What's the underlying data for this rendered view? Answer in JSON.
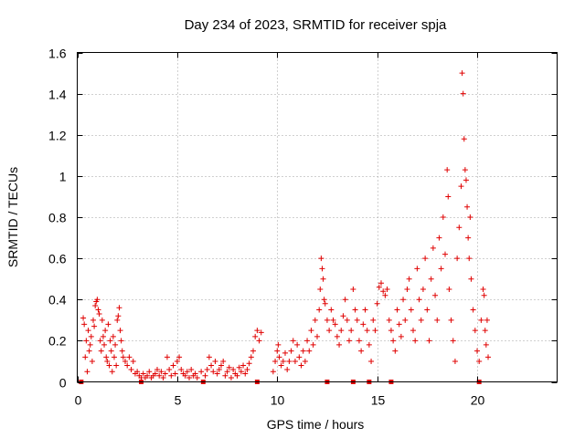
{
  "chart_data": {
    "type": "scatter",
    "title": "Day 234 of 2023, SRMTID for receiver spja",
    "xlabel": "GPS time / hours",
    "ylabel": "SRMTID / TECUs",
    "xlim": [
      0,
      24
    ],
    "ylim": [
      0,
      1.6
    ],
    "xticks": [
      "0",
      "5",
      "10",
      "15",
      "20"
    ],
    "yticks": [
      "0",
      "0.2",
      "0.4",
      "0.6",
      "0.8",
      "1",
      "1.2",
      "1.4",
      "1.6"
    ],
    "grid": true,
    "marker": "+",
    "color": "#e00000",
    "series": [
      {
        "name": "SRMTID",
        "points": [
          [
            0.3,
            0.31
          ],
          [
            0.35,
            0.28
          ],
          [
            0.4,
            0.12
          ],
          [
            0.45,
            0.2
          ],
          [
            0.5,
            0.05
          ],
          [
            0.55,
            0.25
          ],
          [
            0.6,
            0.15
          ],
          [
            0.65,
            0.18
          ],
          [
            0.7,
            0.22
          ],
          [
            0.75,
            0.1
          ],
          [
            0.8,
            0.3
          ],
          [
            0.85,
            0.27
          ],
          [
            0.9,
            0.37
          ],
          [
            0.95,
            0.39
          ],
          [
            1.0,
            0.4
          ],
          [
            1.05,
            0.35
          ],
          [
            1.1,
            0.33
          ],
          [
            1.15,
            0.2
          ],
          [
            1.2,
            0.15
          ],
          [
            1.25,
            0.3
          ],
          [
            1.3,
            0.22
          ],
          [
            1.35,
            0.18
          ],
          [
            1.4,
            0.25
          ],
          [
            1.45,
            0.12
          ],
          [
            1.5,
            0.1
          ],
          [
            1.55,
            0.28
          ],
          [
            1.6,
            0.08
          ],
          [
            1.65,
            0.2
          ],
          [
            1.7,
            0.15
          ],
          [
            1.75,
            0.05
          ],
          [
            1.8,
            0.22
          ],
          [
            1.85,
            0.12
          ],
          [
            1.9,
            0.18
          ],
          [
            1.95,
            0.08
          ],
          [
            2.0,
            0.3
          ],
          [
            2.05,
            0.32
          ],
          [
            2.1,
            0.36
          ],
          [
            2.15,
            0.25
          ],
          [
            2.2,
            0.2
          ],
          [
            2.25,
            0.15
          ],
          [
            2.3,
            0.12
          ],
          [
            2.4,
            0.1
          ],
          [
            2.5,
            0.08
          ],
          [
            2.6,
            0.12
          ],
          [
            2.7,
            0.06
          ],
          [
            2.8,
            0.1
          ],
          [
            2.9,
            0.04
          ],
          [
            3.0,
            0.05
          ],
          [
            3.1,
            0.03
          ],
          [
            3.2,
            0.02
          ],
          [
            3.3,
            0.04
          ],
          [
            3.4,
            0.02
          ],
          [
            3.5,
            0.03
          ],
          [
            3.6,
            0.05
          ],
          [
            3.7,
            0.02
          ],
          [
            3.8,
            0.03
          ],
          [
            3.9,
            0.04
          ],
          [
            4.0,
            0.06
          ],
          [
            4.1,
            0.03
          ],
          [
            4.2,
            0.05
          ],
          [
            4.3,
            0.02
          ],
          [
            4.4,
            0.04
          ],
          [
            4.5,
            0.12
          ],
          [
            4.6,
            0.06
          ],
          [
            4.7,
            0.03
          ],
          [
            4.8,
            0.08
          ],
          [
            4.9,
            0.04
          ],
          [
            5.0,
            0.1
          ],
          [
            5.1,
            0.12
          ],
          [
            5.2,
            0.06
          ],
          [
            5.3,
            0.04
          ],
          [
            5.4,
            0.03
          ],
          [
            5.5,
            0.05
          ],
          [
            5.6,
            0.02
          ],
          [
            5.7,
            0.06
          ],
          [
            5.8,
            0.03
          ],
          [
            5.9,
            0.04
          ],
          [
            6.0,
            0.02
          ],
          [
            6.2,
            0.05
          ],
          [
            6.4,
            0.03
          ],
          [
            6.5,
            0.06
          ],
          [
            6.6,
            0.12
          ],
          [
            6.7,
            0.08
          ],
          [
            6.8,
            0.05
          ],
          [
            6.9,
            0.1
          ],
          [
            7.0,
            0.04
          ],
          [
            7.1,
            0.06
          ],
          [
            7.2,
            0.08
          ],
          [
            7.3,
            0.1
          ],
          [
            7.4,
            0.03
          ],
          [
            7.5,
            0.05
          ],
          [
            7.6,
            0.07
          ],
          [
            7.7,
            0.02
          ],
          [
            7.8,
            0.06
          ],
          [
            7.9,
            0.04
          ],
          [
            8.0,
            0.03
          ],
          [
            8.1,
            0.07
          ],
          [
            8.2,
            0.05
          ],
          [
            8.3,
            0.08
          ],
          [
            8.4,
            0.04
          ],
          [
            8.5,
            0.06
          ],
          [
            8.6,
            0.09
          ],
          [
            8.7,
            0.12
          ],
          [
            8.8,
            0.15
          ],
          [
            8.9,
            0.22
          ],
          [
            9.0,
            0.25
          ],
          [
            9.1,
            0.2
          ],
          [
            9.2,
            0.24
          ],
          [
            9.8,
            0.05
          ],
          [
            9.9,
            0.1
          ],
          [
            10.0,
            0.15
          ],
          [
            10.05,
            0.18
          ],
          [
            10.1,
            0.12
          ],
          [
            10.2,
            0.08
          ],
          [
            10.3,
            0.1
          ],
          [
            10.4,
            0.14
          ],
          [
            10.5,
            0.06
          ],
          [
            10.6,
            0.1
          ],
          [
            10.7,
            0.15
          ],
          [
            10.8,
            0.2
          ],
          [
            10.9,
            0.1
          ],
          [
            11.0,
            0.18
          ],
          [
            11.1,
            0.12
          ],
          [
            11.2,
            0.08
          ],
          [
            11.3,
            0.15
          ],
          [
            11.4,
            0.1
          ],
          [
            11.5,
            0.2
          ],
          [
            11.6,
            0.15
          ],
          [
            11.7,
            0.25
          ],
          [
            11.8,
            0.18
          ],
          [
            11.9,
            0.3
          ],
          [
            12.0,
            0.22
          ],
          [
            12.1,
            0.35
          ],
          [
            12.15,
            0.45
          ],
          [
            12.2,
            0.6
          ],
          [
            12.25,
            0.55
          ],
          [
            12.3,
            0.5
          ],
          [
            12.35,
            0.4
          ],
          [
            12.4,
            0.38
          ],
          [
            12.5,
            0.3
          ],
          [
            12.6,
            0.25
          ],
          [
            12.7,
            0.35
          ],
          [
            12.8,
            0.3
          ],
          [
            12.9,
            0.28
          ],
          [
            13.0,
            0.22
          ],
          [
            13.1,
            0.18
          ],
          [
            13.2,
            0.25
          ],
          [
            13.3,
            0.32
          ],
          [
            13.4,
            0.4
          ],
          [
            13.5,
            0.3
          ],
          [
            13.6,
            0.2
          ],
          [
            13.7,
            0.25
          ],
          [
            13.8,
            0.45
          ],
          [
            13.9,
            0.35
          ],
          [
            14.0,
            0.3
          ],
          [
            14.1,
            0.2
          ],
          [
            14.2,
            0.15
          ],
          [
            14.3,
            0.28
          ],
          [
            14.4,
            0.35
          ],
          [
            14.5,
            0.25
          ],
          [
            14.6,
            0.18
          ],
          [
            14.7,
            0.1
          ],
          [
            14.8,
            0.3
          ],
          [
            14.9,
            0.25
          ],
          [
            15.0,
            0.38
          ],
          [
            15.1,
            0.46
          ],
          [
            15.2,
            0.48
          ],
          [
            15.3,
            0.44
          ],
          [
            15.4,
            0.42
          ],
          [
            15.5,
            0.45
          ],
          [
            15.6,
            0.3
          ],
          [
            15.7,
            0.25
          ],
          [
            15.8,
            0.2
          ],
          [
            15.9,
            0.15
          ],
          [
            16.0,
            0.35
          ],
          [
            16.1,
            0.28
          ],
          [
            16.2,
            0.22
          ],
          [
            16.3,
            0.4
          ],
          [
            16.4,
            0.3
          ],
          [
            16.5,
            0.45
          ],
          [
            16.6,
            0.5
          ],
          [
            16.7,
            0.35
          ],
          [
            16.8,
            0.25
          ],
          [
            16.9,
            0.2
          ],
          [
            17.0,
            0.55
          ],
          [
            17.1,
            0.4
          ],
          [
            17.2,
            0.3
          ],
          [
            17.3,
            0.45
          ],
          [
            17.4,
            0.6
          ],
          [
            17.5,
            0.35
          ],
          [
            17.6,
            0.2
          ],
          [
            17.7,
            0.5
          ],
          [
            17.8,
            0.65
          ],
          [
            17.9,
            0.42
          ],
          [
            18.0,
            0.3
          ],
          [
            18.1,
            0.7
          ],
          [
            18.2,
            0.55
          ],
          [
            18.3,
            0.8
          ],
          [
            18.4,
            0.62
          ],
          [
            18.5,
            1.03
          ],
          [
            18.55,
            0.9
          ],
          [
            18.6,
            0.45
          ],
          [
            18.7,
            0.3
          ],
          [
            18.8,
            0.2
          ],
          [
            18.9,
            0.1
          ],
          [
            19.0,
            0.6
          ],
          [
            19.1,
            0.75
          ],
          [
            19.2,
            0.95
          ],
          [
            19.25,
            1.5
          ],
          [
            19.3,
            1.4
          ],
          [
            19.35,
            1.18
          ],
          [
            19.4,
            1.03
          ],
          [
            19.45,
            0.98
          ],
          [
            19.5,
            0.85
          ],
          [
            19.55,
            0.7
          ],
          [
            19.6,
            0.6
          ],
          [
            19.65,
            0.8
          ],
          [
            19.7,
            0.5
          ],
          [
            19.8,
            0.35
          ],
          [
            19.9,
            0.25
          ],
          [
            20.0,
            0.15
          ],
          [
            20.1,
            0.1
          ],
          [
            20.2,
            0.3
          ],
          [
            20.3,
            0.45
          ],
          [
            20.35,
            0.42
          ],
          [
            20.4,
            0.25
          ],
          [
            20.45,
            0.18
          ],
          [
            20.5,
            0.3
          ],
          [
            20.55,
            0.12
          ]
        ],
        "zeros": [
          0.2,
          3.2,
          6.3,
          9.0,
          12.5,
          13.8,
          14.6,
          15.7,
          20.1
        ]
      }
    ]
  }
}
